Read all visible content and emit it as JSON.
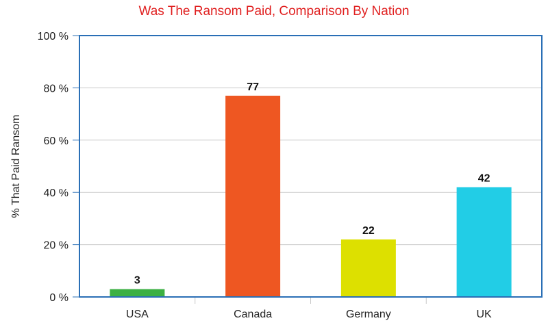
{
  "chart_data": {
    "type": "bar",
    "title": "Was The Ransom Paid, Comparison By Nation",
    "xlabel": "",
    "ylabel": "% That Paid Ransom",
    "categories": [
      "USA",
      "Canada",
      "Germany",
      "UK"
    ],
    "values": [
      3,
      77,
      22,
      42
    ],
    "data_labels": [
      "3",
      "77",
      "22",
      "42"
    ],
    "bar_colors": [
      "#3cb043",
      "#ee5722",
      "#dde000",
      "#22cde6"
    ],
    "ylim": [
      0,
      100
    ],
    "yticks": [
      0,
      20,
      40,
      60,
      80,
      100
    ],
    "ytick_labels": [
      "0 %",
      "20 %",
      "40 %",
      "60 %",
      "80 %",
      "100 %"
    ],
    "grid": true,
    "legend": "none"
  },
  "colors": {
    "title": "#e02020",
    "frame": "#2a6fb6",
    "grid": "#c8c8c8"
  }
}
